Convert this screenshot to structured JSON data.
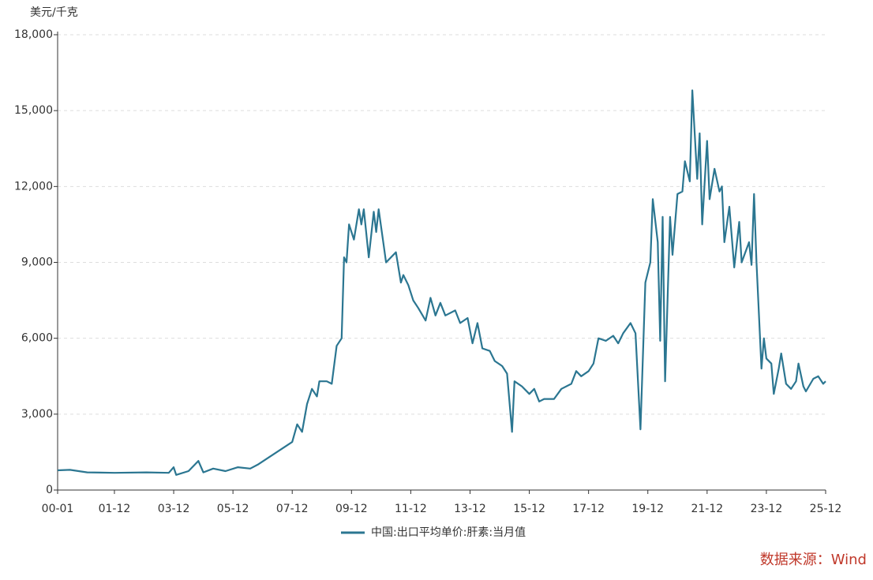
{
  "chart_data": {
    "type": "line",
    "y_label": "美元/千克",
    "source": "数据来源：Wind",
    "xlim": [
      "00-01",
      "25-12"
    ],
    "xticks": [
      "00-01",
      "01-12",
      "03-12",
      "05-12",
      "07-12",
      "09-12",
      "11-12",
      "13-12",
      "15-12",
      "17-12",
      "19-12",
      "21-12",
      "23-12",
      "25-12"
    ],
    "ylim": [
      0,
      18000
    ],
    "yticks": [
      0,
      {
        "value": 3000,
        "label": "3,000"
      },
      {
        "value": 6000,
        "label": "6,000"
      },
      {
        "value": 9000,
        "label": "9,000"
      },
      {
        "value": 12000,
        "label": "12,000"
      },
      {
        "value": 15000,
        "label": "15,000"
      },
      {
        "value": 18000,
        "label": "18,000"
      }
    ],
    "grid": true,
    "x": [
      "00-01",
      "00-06",
      "01-01",
      "01-12",
      "03-01",
      "03-10",
      "03-12",
      "04-01",
      "04-06",
      "04-10",
      "04-12",
      "05-04",
      "05-09",
      "06-02",
      "06-07",
      "06-10",
      "07-12",
      "08-02",
      "08-04",
      "08-06",
      "08-08",
      "08-10",
      "08-11",
      "09-02",
      "09-04",
      "09-06",
      "09-08",
      "09-09",
      "09-10",
      "09-11",
      "10-01",
      "10-03",
      "10-04",
      "10-05",
      "10-07",
      "10-09",
      "10-10",
      "10-11",
      "11-01",
      "11-02",
      "11-06",
      "11-08",
      "11-09",
      "11-11",
      "12-01",
      "12-03",
      "12-06",
      "12-08",
      "12-10",
      "12-12",
      "13-02",
      "13-06",
      "13-08",
      "13-11",
      "14-01",
      "14-03",
      "14-05",
      "14-08",
      "14-10",
      "15-01",
      "15-03",
      "15-05",
      "15-06",
      "15-09",
      "15-12",
      "16-02",
      "16-04",
      "16-06",
      "16-10",
      "17-01",
      "17-05",
      "17-07",
      "17-09",
      "17-12",
      "18-02",
      "18-04",
      "18-07",
      "18-10",
      "18-12",
      "19-02",
      "19-05",
      "19-07",
      "19-09",
      "19-11",
      "20-01",
      "20-02",
      "20-04",
      "20-05",
      "20-06",
      "20-07",
      "20-09",
      "20-10",
      "20-12",
      "21-02",
      "21-03",
      "21-05",
      "21-06",
      "21-08",
      "21-09",
      "21-10",
      "21-12",
      "22-01",
      "22-03",
      "22-05",
      "22-06",
      "22-07",
      "22-09",
      "22-11",
      "23-01",
      "23-02",
      "23-05",
      "23-06",
      "23-07",
      "23-08",
      "23-10",
      "23-11",
      "23-12",
      "24-02",
      "24-03",
      "24-05",
      "24-06",
      "24-08",
      "24-10",
      "24-12",
      "25-01",
      "25-03",
      "25-04",
      "25-07",
      "25-09",
      "25-11",
      "25-12"
    ],
    "series": [
      {
        "name": "中国:出口平均单价:肝素:当月值",
        "color": "#2b7691",
        "values": [
          780,
          800,
          700,
          680,
          700,
          680,
          900,
          600,
          750,
          1150,
          700,
          850,
          750,
          900,
          850,
          1000,
          1900,
          2600,
          2300,
          3400,
          4000,
          3700,
          4300,
          4300,
          4200,
          5700,
          6000,
          9200,
          9000,
          10500,
          9900,
          11100,
          10500,
          11100,
          9200,
          11000,
          10200,
          11100,
          9700,
          9000,
          9400,
          8200,
          8500,
          8100,
          7500,
          7200,
          6700,
          7600,
          6900,
          7400,
          6900,
          7100,
          6600,
          6800,
          5800,
          6600,
          5600,
          5500,
          5100,
          4900,
          4600,
          2300,
          4300,
          4100,
          3800,
          4000,
          3500,
          3600,
          3600,
          4000,
          4200,
          4700,
          4500,
          4700,
          5000,
          6000,
          5900,
          6100,
          5800,
          6200,
          6600,
          6200,
          2400,
          8200,
          9000,
          11500,
          9800,
          5900,
          10800,
          4300,
          10800,
          9300,
          11700,
          11800,
          13000,
          12200,
          15800,
          12300,
          14100,
          10500,
          13800,
          11500,
          12700,
          11800,
          12000,
          9800,
          11200,
          8800,
          10600,
          9000,
          9800,
          8900,
          11700,
          9000,
          4800,
          6000,
          5200,
          5000,
          3800,
          4800,
          5400,
          4200,
          4000,
          4300,
          5000,
          4100,
          3900,
          4400,
          4500,
          4200,
          4300
        ]
      }
    ]
  }
}
